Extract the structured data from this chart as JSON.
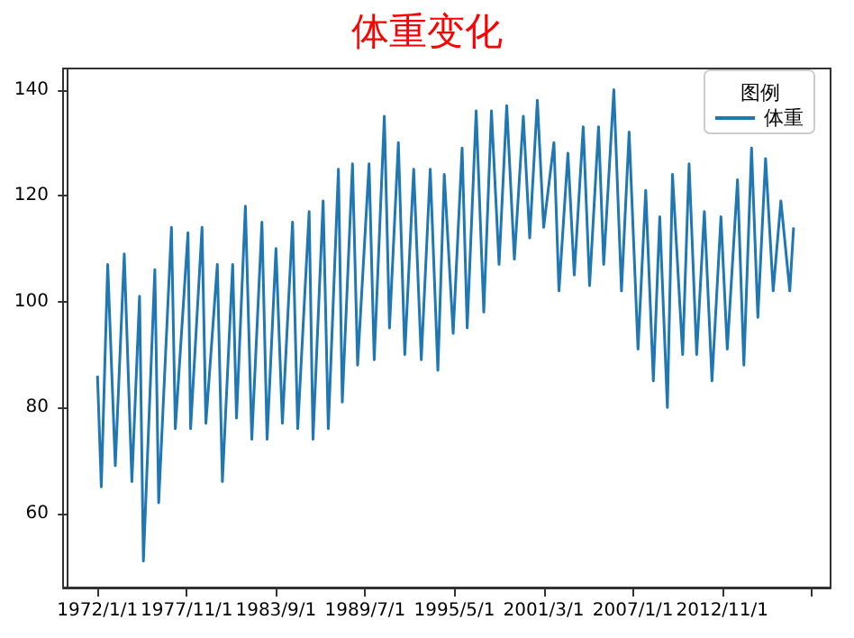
{
  "chart_data": {
    "type": "line",
    "title": "体重变化",
    "legend_title": "图例",
    "legend": "top right",
    "grid": false,
    "xlim": [
      "1969-10-01",
      "2019-12-01"
    ],
    "xticks": [
      {
        "value": "1972-01-01",
        "label": "1972/1/1"
      },
      {
        "value": "1977-11-01",
        "label": "1977/11/1"
      },
      {
        "value": "1983-09-01",
        "label": "1983/9/1"
      },
      {
        "value": "1989-07-01",
        "label": "1989/7/1"
      },
      {
        "value": "1995-05-01",
        "label": "1995/5/1"
      },
      {
        "value": "2001-03-01",
        "label": "2001/3/1"
      },
      {
        "value": "2007-01-01",
        "label": "2007/1/1"
      },
      {
        "value": "2012-11-01",
        "label": "2012/11/1"
      },
      {
        "value": "2018-09-01",
        "label": null
      }
    ],
    "ylim": [
      46,
      144
    ],
    "yticks": [
      60,
      80,
      100,
      120,
      140
    ],
    "x": [
      "1972-01",
      "1972-04",
      "1972-09",
      "1973-03",
      "1973-10",
      "1974-04",
      "1974-10",
      "1975-01",
      "1975-10",
      "1976-01",
      "1976-11",
      "1977-02",
      "1977-12",
      "1978-02",
      "1978-11",
      "1979-02",
      "1979-11",
      "1980-03",
      "1980-11",
      "1981-02",
      "1981-09",
      "1982-02",
      "1982-10",
      "1983-02",
      "1983-09",
      "1984-02",
      "1984-10",
      "1985-02",
      "1985-11",
      "1986-02",
      "1986-10",
      "1987-02",
      "1987-10",
      "1988-01",
      "1988-09",
      "1989-01",
      "1989-10",
      "1990-02",
      "1990-10",
      "1991-02",
      "1991-09",
      "1992-02",
      "1992-09",
      "1993-03",
      "1993-10",
      "1994-04",
      "1994-09",
      "1995-04",
      "1995-11",
      "1996-03",
      "1996-10",
      "1997-04",
      "1997-10",
      "1998-04",
      "1998-10",
      "1999-04",
      "1999-11",
      "2000-04",
      "2000-10",
      "2001-03",
      "2001-11",
      "2002-03",
      "2002-10",
      "2003-03",
      "2003-10",
      "2004-03",
      "2004-10",
      "2005-02",
      "2005-10",
      "2006-04",
      "2006-10",
      "2007-05",
      "2007-11",
      "2008-05",
      "2008-10",
      "2009-04",
      "2009-08",
      "2010-04",
      "2010-09",
      "2011-03",
      "2011-09",
      "2012-03",
      "2012-10",
      "2013-03",
      "2013-11",
      "2014-04",
      "2014-10",
      "2015-03",
      "2015-09",
      "2016-03",
      "2016-09",
      "2017-04",
      "2017-07"
    ],
    "series": [
      {
        "name": "体重",
        "color": "#1f77b4",
        "values": [
          86,
          65,
          107,
          69,
          109,
          66,
          101,
          51,
          106,
          62,
          114,
          76,
          113,
          76,
          114,
          77,
          107,
          66,
          107,
          78,
          118,
          74,
          115,
          74,
          110,
          77,
          115,
          76,
          117,
          74,
          119,
          76,
          125,
          81,
          126,
          88,
          126,
          89,
          135,
          95,
          130,
          90,
          125,
          89,
          125,
          87,
          124,
          94,
          129,
          95,
          136,
          98,
          136,
          107,
          137,
          108,
          135,
          112,
          138,
          114,
          130,
          102,
          128,
          105,
          133,
          103,
          133,
          107,
          140,
          102,
          132,
          91,
          121,
          85,
          116,
          80,
          124,
          90,
          126,
          90,
          117,
          85,
          116,
          91,
          123,
          88,
          129,
          97,
          127,
          102,
          119,
          102,
          114
        ]
      }
    ]
  }
}
